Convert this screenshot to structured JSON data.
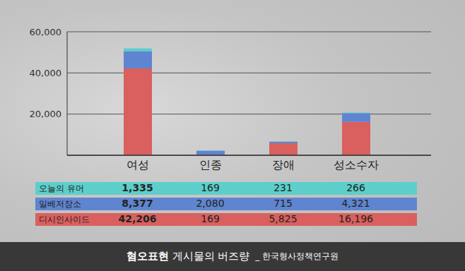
{
  "chart_data": {
    "type": "bar",
    "title": "혐오표현 게시물의 버즈량",
    "source": "_ 한국형사정책연구원",
    "stacked": true,
    "grid": true,
    "categories": [
      "여성",
      "인종",
      "장애",
      "성소수자"
    ],
    "series": [
      {
        "name": "오늘의 유머",
        "color": "#5ccfcb",
        "values": [
          1335,
          169,
          231,
          266
        ],
        "value_labels": [
          "1,335",
          "169",
          "231",
          "266"
        ]
      },
      {
        "name": "일베저장소",
        "color": "#5f85d0",
        "values": [
          8377,
          2080,
          715,
          4321
        ],
        "value_labels": [
          "8,377",
          "2,080",
          "715",
          "4,321"
        ]
      },
      {
        "name": "디시인사이드",
        "color": "#d9605f",
        "values": [
          42206,
          169,
          5825,
          16196
        ],
        "value_labels": [
          "42,206",
          "169",
          "5,825",
          "16,196"
        ]
      }
    ],
    "ylim": [
      0,
      60000
    ],
    "yticks": [
      {
        "value": 20000,
        "label": "20,000"
      },
      {
        "value": 40000,
        "label": "40,000"
      },
      {
        "value": 60000,
        "label": "60,000"
      }
    ]
  }
}
